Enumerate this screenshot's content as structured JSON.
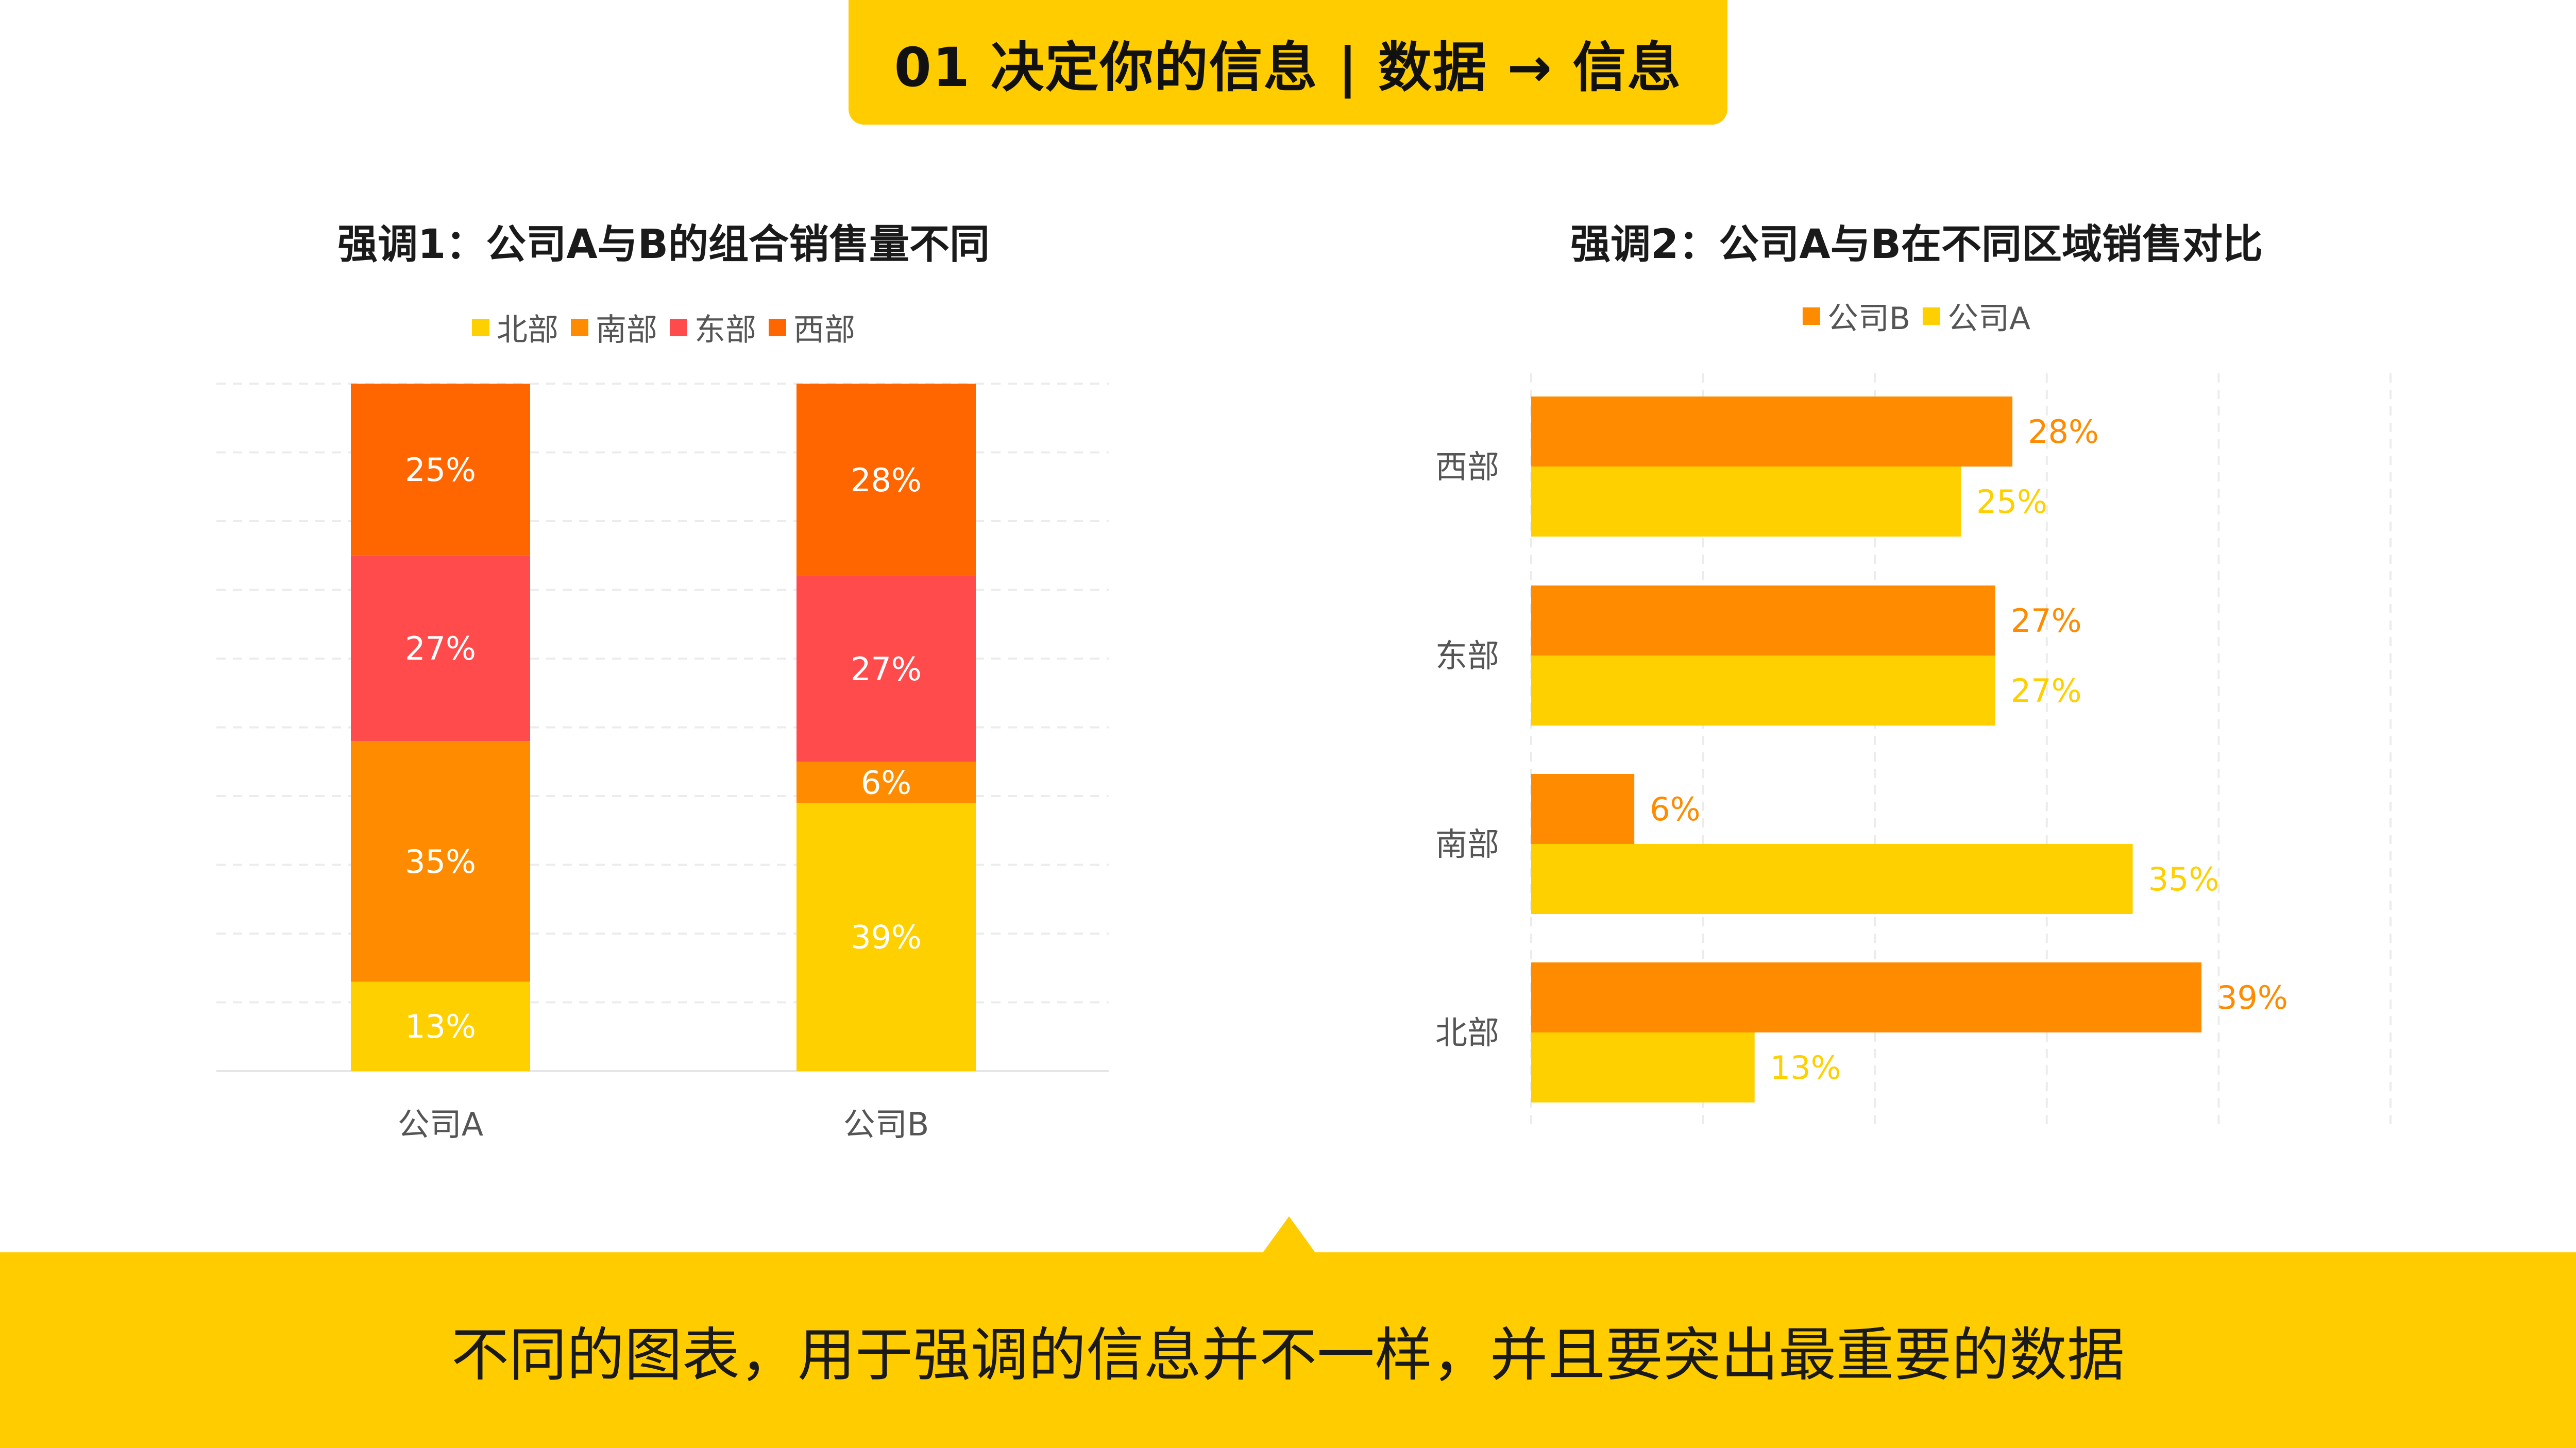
{
  "header": {
    "title": "01  决定你的信息 | 数据 → 信息"
  },
  "footer": {
    "text": "不同的图表，用于强调的信息并不一样，并且要突出最重要的数据"
  },
  "chart_data": [
    {
      "type": "bar",
      "stacked": true,
      "orientation": "vertical",
      "title": "强调1：公司A与B的组合销售量不同",
      "categories": [
        "公司A",
        "公司B"
      ],
      "series": [
        {
          "name": "北部",
          "color": "#FFD000",
          "values": [
            13,
            39
          ]
        },
        {
          "name": "南部",
          "color": "#FF8C00",
          "values": [
            35,
            6
          ]
        },
        {
          "name": "东部",
          "color": "#FF4B4B",
          "values": [
            27,
            27
          ]
        },
        {
          "name": "西部",
          "color": "#FF6600",
          "values": [
            25,
            28
          ]
        }
      ],
      "value_suffix": "%",
      "ylim": [
        0,
        100
      ],
      "grid": true,
      "legend_position": "top"
    },
    {
      "type": "bar",
      "orientation": "horizontal",
      "title": "强调2：公司A与B在不同区域销售对比",
      "categories": [
        "西部",
        "东部",
        "南部",
        "北部"
      ],
      "series": [
        {
          "name": "公司B",
          "color": "#FF8C00",
          "values": [
            28,
            27,
            6,
            39
          ]
        },
        {
          "name": "公司A",
          "color": "#FFD000",
          "values": [
            25,
            27,
            35,
            13
          ]
        }
      ],
      "value_suffix": "%",
      "xlim": [
        0,
        50
      ],
      "grid": true,
      "legend_position": "top"
    }
  ]
}
